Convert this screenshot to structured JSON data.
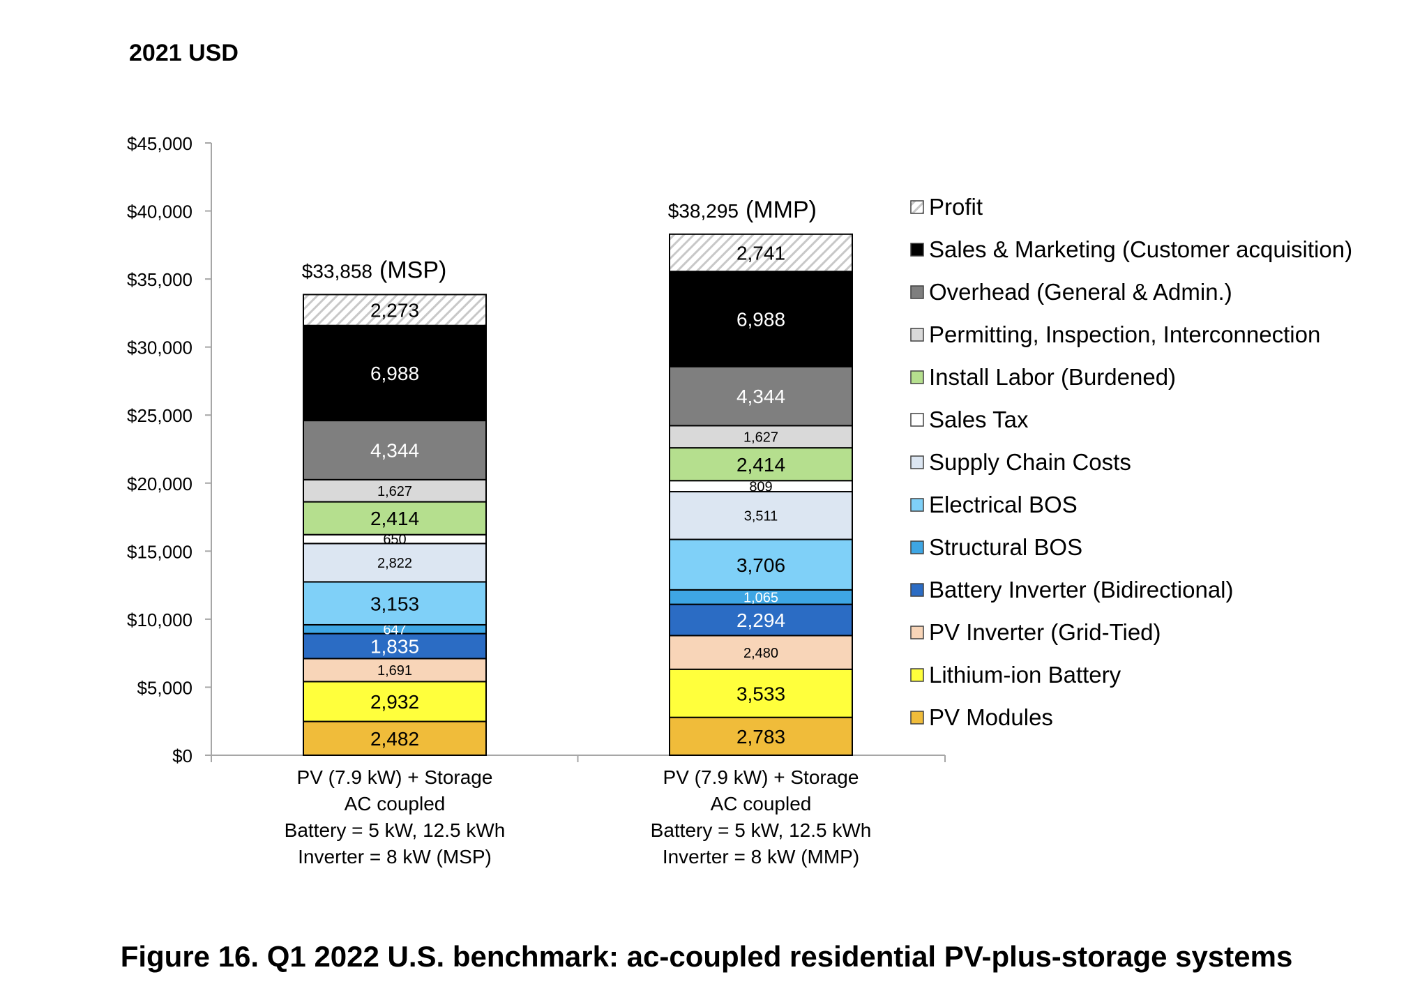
{
  "caption": "Figure 16. Q1 2022 U.S. benchmark: ac-coupled residential PV-plus-storage systems",
  "chart_data": {
    "type": "bar",
    "stacked": true,
    "title": "2021 USD",
    "xlabel": "",
    "ylabel": "",
    "ylim": [
      0,
      45000
    ],
    "yticks": [
      0,
      5000,
      10000,
      15000,
      20000,
      25000,
      30000,
      35000,
      40000,
      45000
    ],
    "ytick_labels": [
      "$0",
      "$5,000",
      "$10,000",
      "$15,000",
      "$20,000",
      "$25,000",
      "$30,000",
      "$35,000",
      "$40,000",
      "$45,000"
    ],
    "grid": false,
    "legend_position": "right",
    "categories": [
      [
        "PV (7.9 kW) + Storage",
        "AC coupled",
        "Battery = 5 kW, 12.5 kWh",
        "Inverter = 8 kW (MSP)"
      ],
      [
        "PV (7.9 kW) + Storage",
        "AC coupled",
        "Battery = 5 kW, 12.5 kWh",
        "Inverter = 8 kW (MMP)"
      ]
    ],
    "totals": [
      {
        "value": "$33,858",
        "label": "(MSP)",
        "numeric": 33858
      },
      {
        "value": "$38,295",
        "label": "(MMP)",
        "numeric": 38295
      }
    ],
    "series": [
      {
        "name": "PV Modules",
        "color": "#f0bc3a",
        "values": [
          2482,
          2783
        ],
        "labels": [
          "2,482",
          "2,783"
        ],
        "text_color": "#000000",
        "size": "large"
      },
      {
        "name": "Lithium-ion Battery",
        "color": "#ffff3c",
        "values": [
          2932,
          3533
        ],
        "labels": [
          "2,932",
          "3,533"
        ],
        "text_color": "#000000",
        "size": "large"
      },
      {
        "name": "PV Inverter (Grid-Tied)",
        "color": "#f8d5b8",
        "values": [
          1691,
          2480
        ],
        "labels": [
          "1,691",
          "2,480"
        ],
        "text_color": "#000000",
        "size": "small"
      },
      {
        "name": "Battery Inverter (Bidirectional)",
        "color": "#2b6cc4",
        "values": [
          1835,
          2294
        ],
        "labels": [
          "1,835",
          "2,294"
        ],
        "text_color": "#ffffff",
        "size": "large"
      },
      {
        "name": "Structural BOS",
        "color": "#3ea6e4",
        "values": [
          647,
          1065
        ],
        "labels": [
          "647",
          "1,065"
        ],
        "text_color": "#ffffff",
        "size": "small"
      },
      {
        "name": "Electrical BOS",
        "color": "#7fd0f8",
        "values": [
          3153,
          3706
        ],
        "labels": [
          "3,153",
          "3,706"
        ],
        "text_color": "#000000",
        "size": "large"
      },
      {
        "name": "Supply Chain Costs",
        "color": "#dce6f2",
        "values": [
          2822,
          3511
        ],
        "labels": [
          "2,822",
          "3,511"
        ],
        "text_color": "#000000",
        "size": "small"
      },
      {
        "name": "Sales Tax",
        "color": "#ffffff",
        "values": [
          650,
          809
        ],
        "labels": [
          "650",
          "809"
        ],
        "text_color": "#000000",
        "size": "small"
      },
      {
        "name": "Install Labor (Burdened)",
        "color": "#b5df8e",
        "values": [
          2414,
          2414
        ],
        "labels": [
          "2,414",
          "2,414"
        ],
        "text_color": "#000000",
        "size": "large"
      },
      {
        "name": "Permitting, Inspection, Interconnection",
        "color": "#d9d9d9",
        "values": [
          1627,
          1627
        ],
        "labels": [
          "1,627",
          "1,627"
        ],
        "text_color": "#000000",
        "size": "small"
      },
      {
        "name": "Overhead (General & Admin.)",
        "color": "#7f7f7f",
        "values": [
          4344,
          4344
        ],
        "labels": [
          "4,344",
          "4,344"
        ],
        "text_color": "#ffffff",
        "size": "large"
      },
      {
        "name": "Sales & Marketing (Customer acquisition)",
        "color": "#000000",
        "values": [
          6988,
          6988
        ],
        "labels": [
          "6,988",
          "6,988"
        ],
        "text_color": "#ffffff",
        "size": "large"
      },
      {
        "name": "Profit",
        "color": "hatch",
        "values": [
          2273,
          2741
        ],
        "labels": [
          "2,273",
          "2,741"
        ],
        "text_color": "#000000",
        "size": "large"
      }
    ]
  }
}
